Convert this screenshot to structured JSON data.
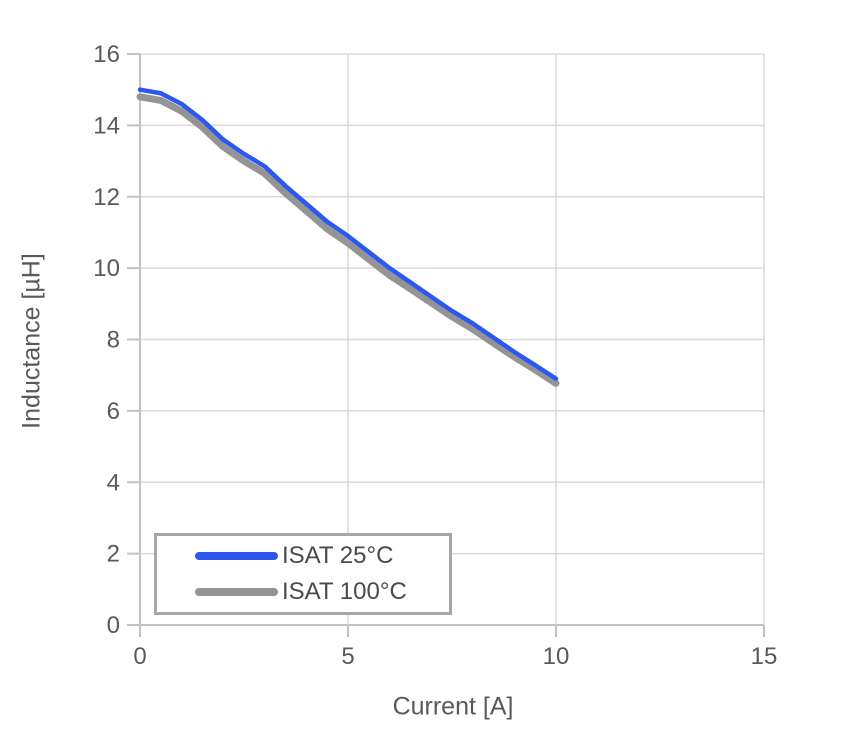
{
  "chart_data": {
    "type": "line",
    "title": "",
    "xlabel": "Current [A]",
    "ylabel": "Inductance [µH]",
    "xlim": [
      0,
      15
    ],
    "ylim": [
      0,
      16
    ],
    "xticks": [
      0,
      5,
      10,
      15
    ],
    "yticks": [
      0,
      2,
      4,
      6,
      8,
      10,
      12,
      14,
      16
    ],
    "grid": true,
    "legend_position": "inside-bottom-left",
    "x": [
      0,
      0.5,
      1,
      1.5,
      2,
      2.5,
      3,
      3.5,
      4,
      4.5,
      5,
      5.5,
      6,
      6.5,
      7,
      7.5,
      8,
      8.5,
      9,
      9.5,
      10
    ],
    "series": [
      {
        "name": "ISAT 25°C",
        "color": "#2b58f0",
        "line_width": 4.5,
        "values": [
          15.0,
          14.9,
          14.6,
          14.15,
          13.6,
          13.2,
          12.85,
          12.3,
          11.8,
          11.3,
          10.9,
          10.45,
          10.0,
          9.6,
          9.2,
          8.8,
          8.45,
          8.05,
          7.65,
          7.28,
          6.9
        ]
      },
      {
        "name": "ISAT 100°C",
        "color": "#949494",
        "line_width": 7,
        "values": [
          14.8,
          14.7,
          14.4,
          13.95,
          13.4,
          13.0,
          12.65,
          12.1,
          11.6,
          11.1,
          10.7,
          10.25,
          9.8,
          9.42,
          9.03,
          8.64,
          8.29,
          7.9,
          7.51,
          7.15,
          6.77
        ]
      }
    ],
    "colors": {
      "axis": "#c2c2c2",
      "grid": "#d9d9d9",
      "tick_label": "#595959",
      "axis_title": "#595959",
      "legend_border": "#a6a6a6",
      "legend_text": "#4a4a4a",
      "background": "#ffffff"
    }
  }
}
